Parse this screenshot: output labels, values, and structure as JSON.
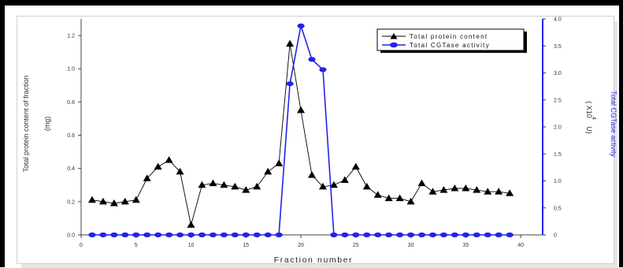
{
  "chart_data": {
    "type": "line",
    "xlabel": "Fraction number",
    "ylabel_left_line1": "Total protein content of fraction",
    "ylabel_left_line2": "(mg)",
    "ylabel_right_line1": "Total CGTase activity",
    "ylabel_right_line2": "( X10",
    "ylabel_right_exp": "4",
    "ylabel_right_unit": "U)",
    "xlim": [
      0,
      42
    ],
    "x_ticks": [
      "0",
      "5",
      "10",
      "15",
      "20",
      "25",
      "30",
      "35",
      "40"
    ],
    "ylim_left": [
      0,
      1.3
    ],
    "y_left_ticks": [
      "0.0",
      "0.2",
      "0.4",
      "0.6",
      "0.8",
      "1.0",
      "1.2"
    ],
    "ylim_right": [
      0,
      4.0
    ],
    "y_right_ticks": [
      "0",
      "0.5",
      "1.0",
      "1.5",
      "2.0",
      "2.5",
      "3.0",
      "3.5",
      "4.0"
    ],
    "legend_position": "top-right",
    "series": [
      {
        "name": "Total protein content",
        "axis": "left",
        "color": "#000000",
        "marker": "triangle",
        "x": [
          1,
          2,
          3,
          4,
          5,
          6,
          7,
          8,
          9,
          10,
          11,
          12,
          13,
          14,
          15,
          16,
          17,
          18,
          19,
          20,
          21,
          22,
          23,
          24,
          25,
          26,
          27,
          28,
          29,
          30,
          31,
          32,
          33,
          34,
          35,
          36,
          37,
          38,
          39
        ],
        "values": [
          0.21,
          0.2,
          0.19,
          0.2,
          0.21,
          0.34,
          0.41,
          0.45,
          0.38,
          0.06,
          0.3,
          0.31,
          0.3,
          0.29,
          0.27,
          0.29,
          0.38,
          0.43,
          1.15,
          0.75,
          0.36,
          0.29,
          0.3,
          0.33,
          0.41,
          0.29,
          0.24,
          0.22,
          0.22,
          0.2,
          0.31,
          0.26,
          0.27,
          0.28,
          0.28,
          0.27,
          0.26,
          0.26,
          0.25
        ]
      },
      {
        "name": "Total CGTase activity",
        "axis": "right",
        "color": "#2323e8",
        "marker": "circle",
        "x": [
          1,
          2,
          3,
          4,
          5,
          6,
          7,
          8,
          9,
          10,
          11,
          12,
          13,
          14,
          15,
          16,
          17,
          18,
          19,
          20,
          21,
          22,
          23,
          24,
          25,
          26,
          27,
          28,
          29,
          30,
          31,
          32,
          33,
          34,
          35,
          36,
          37,
          38,
          39
        ],
        "values": [
          0,
          0,
          0,
          0,
          0,
          0,
          0,
          0,
          0,
          0,
          0,
          0,
          0,
          0,
          0,
          0,
          0,
          0,
          2.8,
          3.87,
          3.25,
          3.06,
          0,
          0,
          0,
          0,
          0,
          0,
          0,
          0,
          0,
          0,
          0,
          0,
          0,
          0,
          0,
          0,
          0
        ]
      }
    ]
  }
}
